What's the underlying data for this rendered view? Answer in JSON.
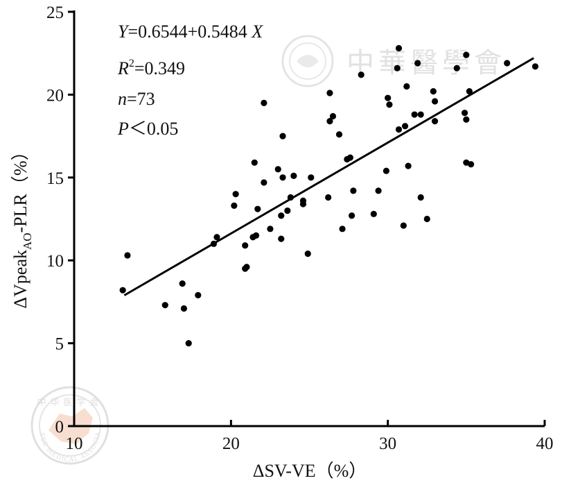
{
  "chart_data": {
    "type": "scatter",
    "xlabel": "ΔSV-VE（%）",
    "ylabel_parts": {
      "pre": "ΔVpeak",
      "sub": "AO",
      "post": "-PLR（%）"
    },
    "xlim": [
      10,
      40
    ],
    "ylim": [
      0,
      25
    ],
    "xticks": [
      10,
      20,
      30,
      40
    ],
    "yticks": [
      0,
      5,
      10,
      15,
      20,
      25
    ],
    "grid": false,
    "annotations": {
      "equation": {
        "var_y": "Y",
        "body": "=0.6544+0.5484 ",
        "var_x": "X"
      },
      "r2": {
        "var": "R",
        "sup": "2",
        "body": "=0.349"
      },
      "n": {
        "var": "n",
        "body": "=73"
      },
      "p": {
        "var": "P",
        "body": "＜0.05"
      }
    },
    "regression": {
      "intercept": 0.6544,
      "slope": 0.5484,
      "x_range": [
        13.2,
        39.3
      ]
    },
    "points": [
      [
        13.1,
        8.2
      ],
      [
        13.4,
        10.3
      ],
      [
        15.8,
        7.3
      ],
      [
        16.9,
        8.6
      ],
      [
        17.0,
        7.1
      ],
      [
        17.3,
        5.0
      ],
      [
        17.9,
        7.9
      ],
      [
        18.9,
        11.0
      ],
      [
        19.1,
        11.4
      ],
      [
        20.2,
        13.3
      ],
      [
        20.3,
        14.0
      ],
      [
        20.9,
        9.5
      ],
      [
        21.0,
        9.6
      ],
      [
        20.9,
        10.9
      ],
      [
        21.4,
        11.4
      ],
      [
        21.5,
        15.9
      ],
      [
        21.6,
        11.5
      ],
      [
        21.7,
        13.1
      ],
      [
        22.1,
        19.5
      ],
      [
        22.1,
        14.7
      ],
      [
        22.5,
        11.9
      ],
      [
        23.0,
        15.5
      ],
      [
        23.2,
        11.3
      ],
      [
        23.2,
        12.7
      ],
      [
        23.3,
        15.0
      ],
      [
        23.3,
        17.5
      ],
      [
        23.6,
        13.0
      ],
      [
        23.8,
        13.8
      ],
      [
        24.0,
        15.1
      ],
      [
        24.6,
        13.4
      ],
      [
        24.6,
        13.6
      ],
      [
        24.9,
        10.4
      ],
      [
        25.1,
        15.0
      ],
      [
        26.2,
        13.8
      ],
      [
        26.3,
        18.4
      ],
      [
        26.3,
        20.1
      ],
      [
        26.5,
        18.7
      ],
      [
        26.9,
        17.6
      ],
      [
        27.1,
        11.9
      ],
      [
        27.4,
        16.1
      ],
      [
        27.7,
        12.7
      ],
      [
        27.8,
        14.2
      ],
      [
        28.3,
        21.2
      ],
      [
        29.1,
        12.8
      ],
      [
        29.4,
        14.2
      ],
      [
        29.9,
        15.4
      ],
      [
        30.0,
        19.8
      ],
      [
        30.1,
        19.4
      ],
      [
        30.6,
        21.6
      ],
      [
        30.7,
        17.9
      ],
      [
        30.7,
        22.8
      ],
      [
        31.0,
        12.1
      ],
      [
        31.1,
        18.1
      ],
      [
        31.2,
        20.5
      ],
      [
        31.3,
        15.7
      ],
      [
        31.7,
        18.8
      ],
      [
        31.9,
        21.9
      ],
      [
        32.1,
        18.8
      ],
      [
        32.1,
        13.8
      ],
      [
        32.5,
        12.5
      ],
      [
        32.9,
        20.2
      ],
      [
        33.0,
        19.6
      ],
      [
        33.0,
        18.4
      ],
      [
        34.4,
        21.6
      ],
      [
        34.9,
        18.9
      ],
      [
        35.0,
        22.4
      ],
      [
        35.0,
        18.5
      ],
      [
        35.0,
        15.9
      ],
      [
        35.2,
        20.2
      ],
      [
        35.3,
        15.8
      ],
      [
        37.6,
        21.9
      ],
      [
        39.4,
        21.7
      ],
      [
        27.6,
        16.2
      ]
    ]
  },
  "watermarks": {
    "top_right_text": "中華醫學會",
    "seal_top_text": "中华医学会",
    "seal_arc_text": "CHINESE MEDICAL ASSOCIATION"
  }
}
